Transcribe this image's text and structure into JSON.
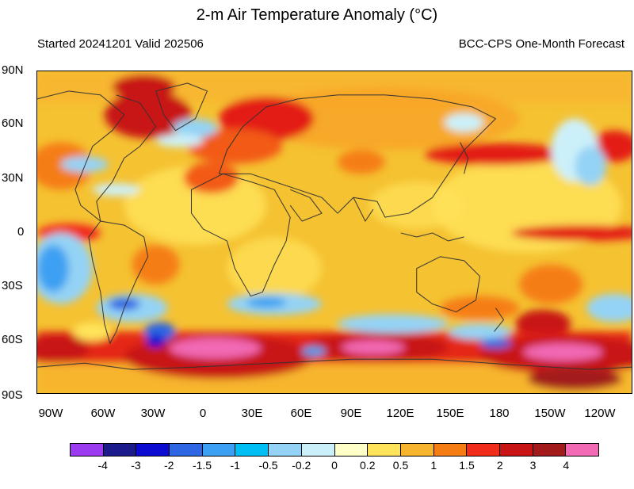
{
  "map": {
    "title": "2-m Air Temperature Anomaly (°C)",
    "started": "Started 20241201  Valid 202506",
    "source": "BCC-CPS One-Month Forecast",
    "lat_labels": [
      "90N",
      "60N",
      "30N",
      "0",
      "30S",
      "60S",
      "90S"
    ],
    "lon_labels": [
      "90W",
      "60W",
      "30W",
      "0",
      "30E",
      "60E",
      "90E",
      "120E",
      "150E",
      "180",
      "150W",
      "120W"
    ]
  },
  "colorbar": {
    "colors": [
      "#9c3cf0",
      "#1b1b8c",
      "#0b0bd1",
      "#2e66e3",
      "#3ea0f2",
      "#00bff5",
      "#94d3f5",
      "#ccf0fa",
      "#ffffc8",
      "#ffe35a",
      "#f7b42e",
      "#f57d14",
      "#f22c1a",
      "#c81414",
      "#a31a1a",
      "#f269b4"
    ],
    "labels": [
      "-4",
      "-3",
      "-2",
      "-1.5",
      "-1",
      "-0.5",
      "-0.2",
      "0",
      "0.2",
      "0.5",
      "1",
      "1.5",
      "2",
      "3",
      "4"
    ]
  }
}
